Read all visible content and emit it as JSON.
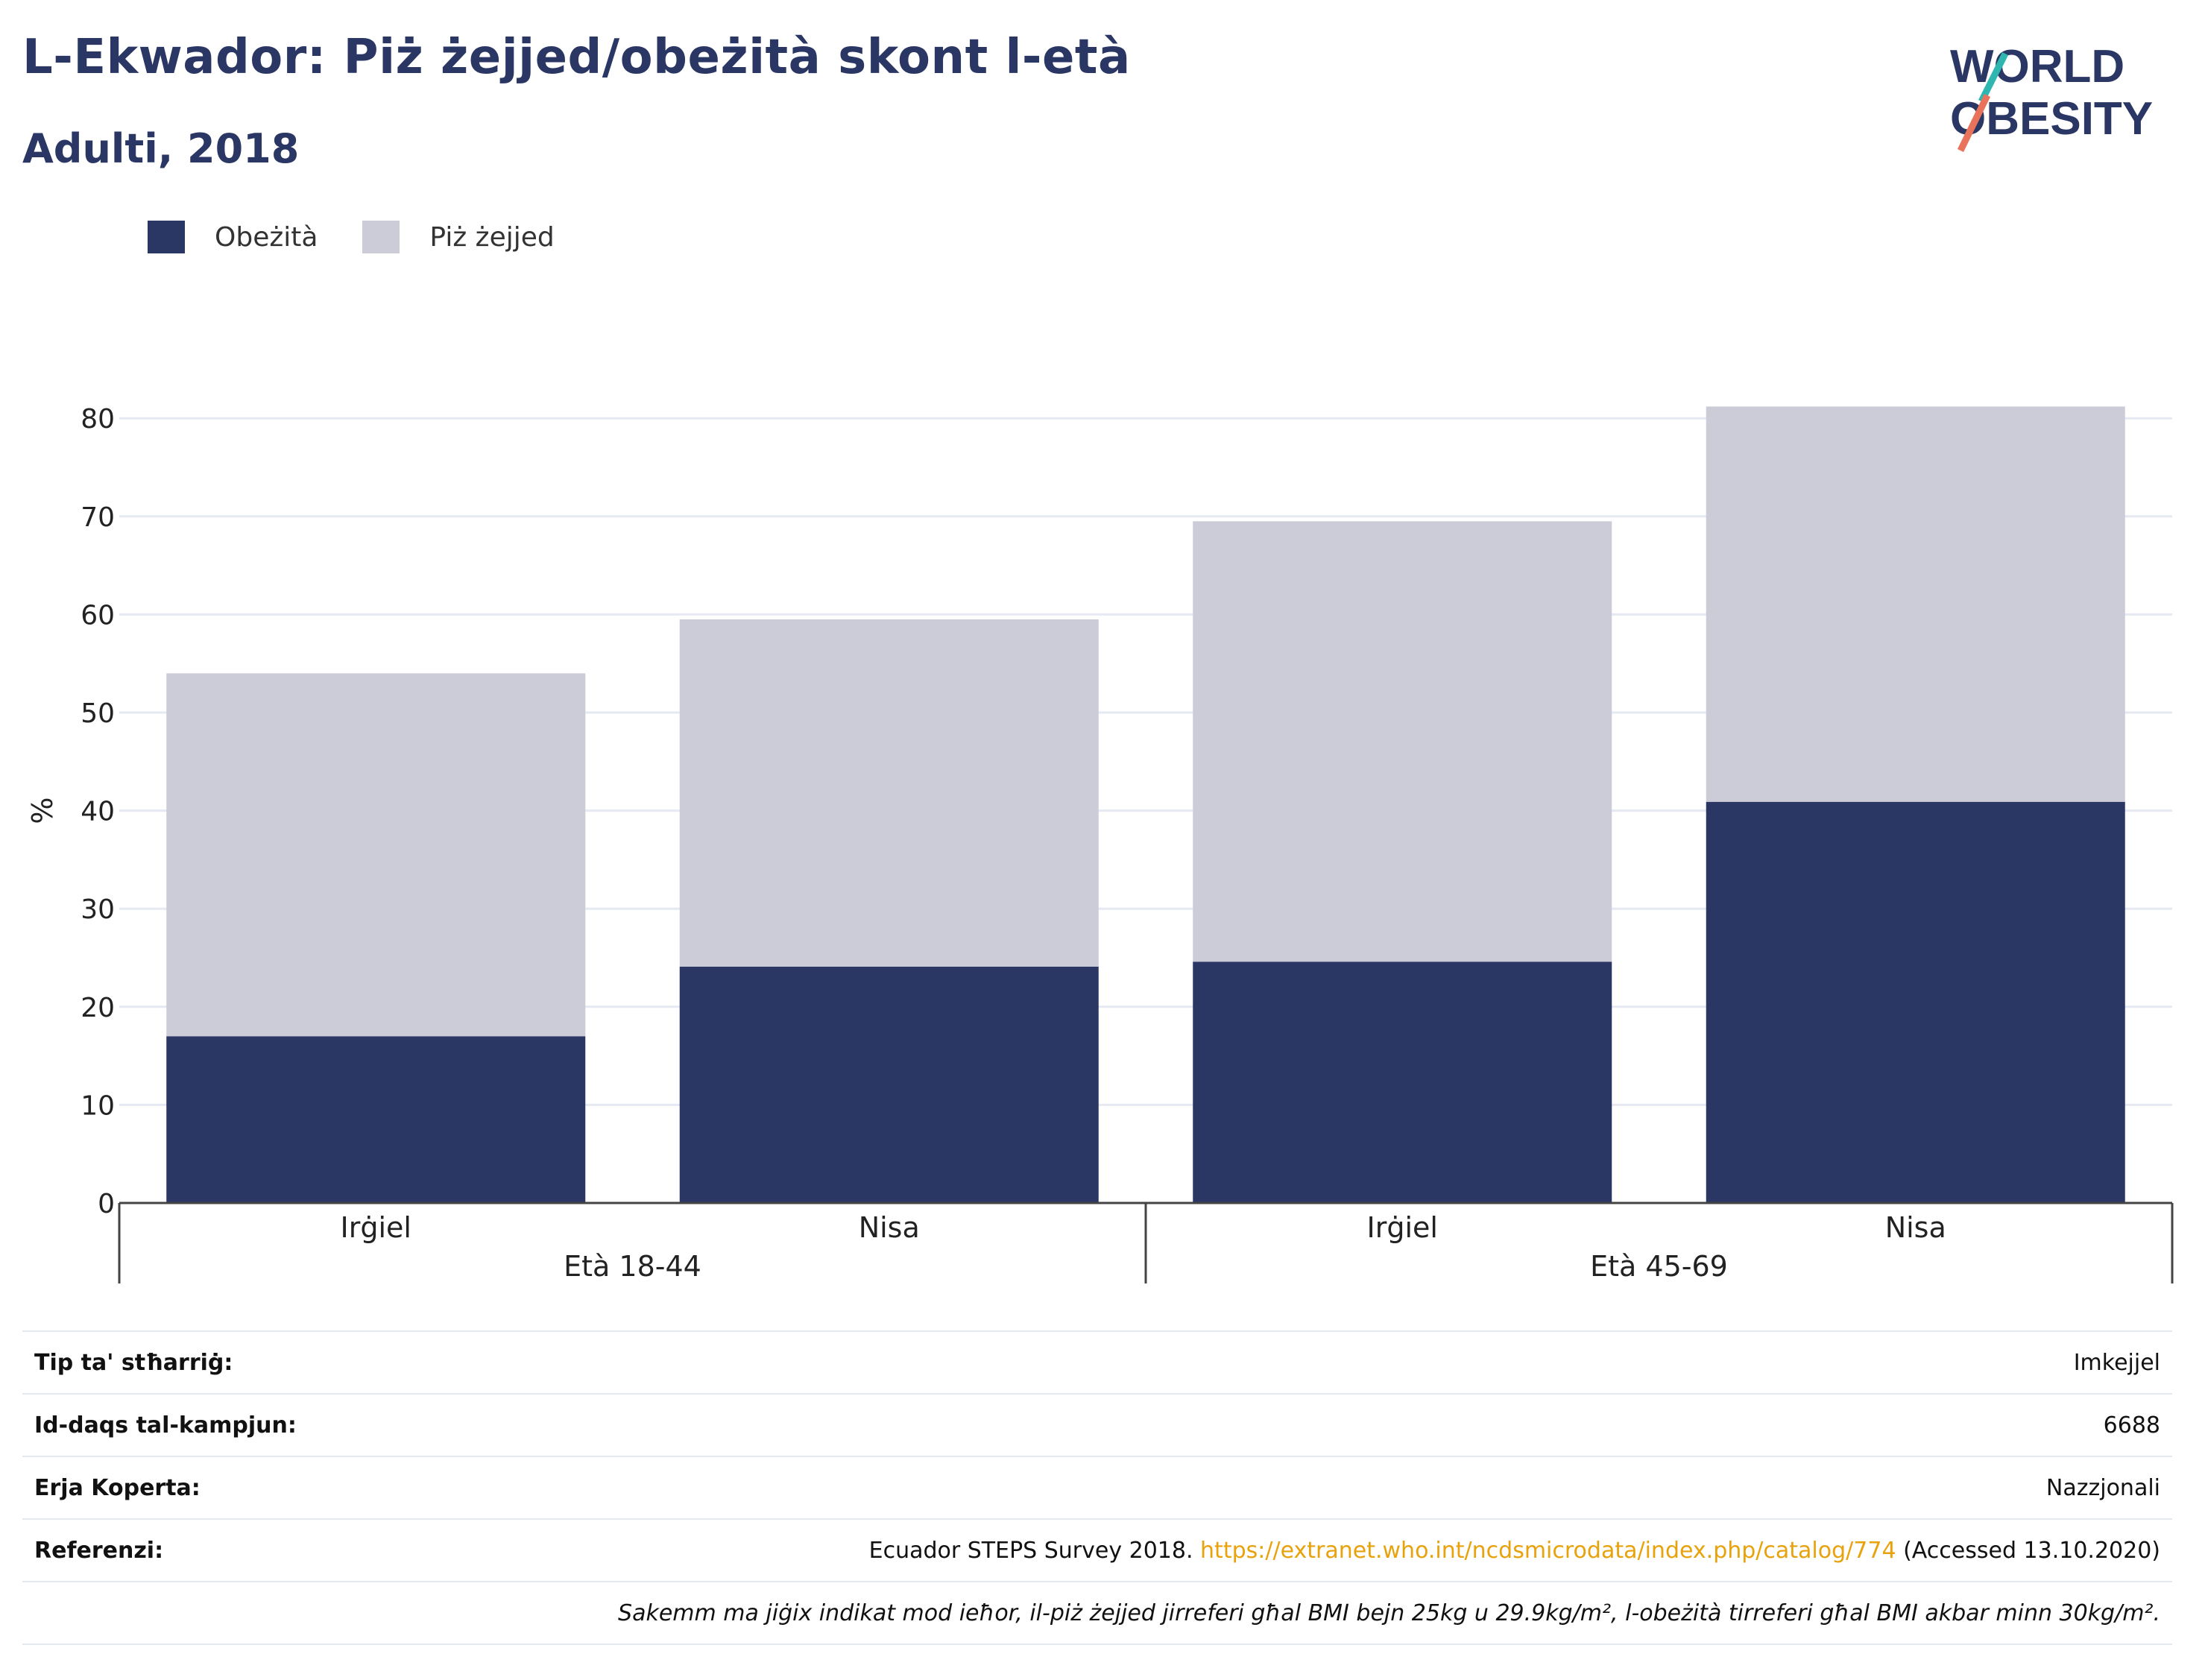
{
  "header": {
    "title": "L-Ekwador: Piż żejjed/obeżità skont l-età",
    "subtitle": "Adulti, 2018"
  },
  "logo": {
    "line1": "WORLD",
    "line2": "OBESITY"
  },
  "chart_data": {
    "type": "bar",
    "stacked": true,
    "title": "L-Ekwador: Piż żejjed/obeżità skont l-età",
    "subtitle": "Adulti, 2018",
    "ylabel": "%",
    "xlabel": "",
    "ylim": [
      0,
      85
    ],
    "yticks": [
      0,
      10,
      20,
      30,
      40,
      50,
      60,
      70,
      80
    ],
    "grid": true,
    "legend_position": "top-left",
    "categories": [
      "Irġiel",
      "Nisa",
      "Irġiel",
      "Nisa"
    ],
    "groups": [
      {
        "label": "Età 18-44",
        "span": [
          0,
          1
        ]
      },
      {
        "label": "Età 45-69",
        "span": [
          2,
          3
        ]
      }
    ],
    "series": [
      {
        "name": "Obeżità",
        "color": "#2a3663",
        "values": [
          17.0,
          24.1,
          24.6,
          40.9
        ]
      },
      {
        "name": "Piż żejjed",
        "color": "#cbccd8",
        "values": [
          37.0,
          35.4,
          44.9,
          40.3
        ]
      }
    ]
  },
  "meta": {
    "rows": [
      {
        "label": "Tip ta' stħarriġ:",
        "value": "Imkejjel"
      },
      {
        "label": "Id-daqs tal-kampjun:",
        "value": "6688"
      },
      {
        "label": "Erja Koperta:",
        "value": "Nazzjonali"
      }
    ],
    "reference": {
      "label": "Referenzi:",
      "prefix": "Ecuador STEPS Survey 2018. ",
      "link": "https://extranet.who.int/ncdsmicrodata/index.php/catalog/774",
      "suffix": " (Accessed 13.10.2020)"
    },
    "note": "Sakemm ma jiġix indikat mod ieħor, il-piż żejjed jirreferi għal BMI bejn 25kg u 29.9kg/m², l-obeżità tirreferi għal BMI akbar minn 30kg/m²."
  }
}
